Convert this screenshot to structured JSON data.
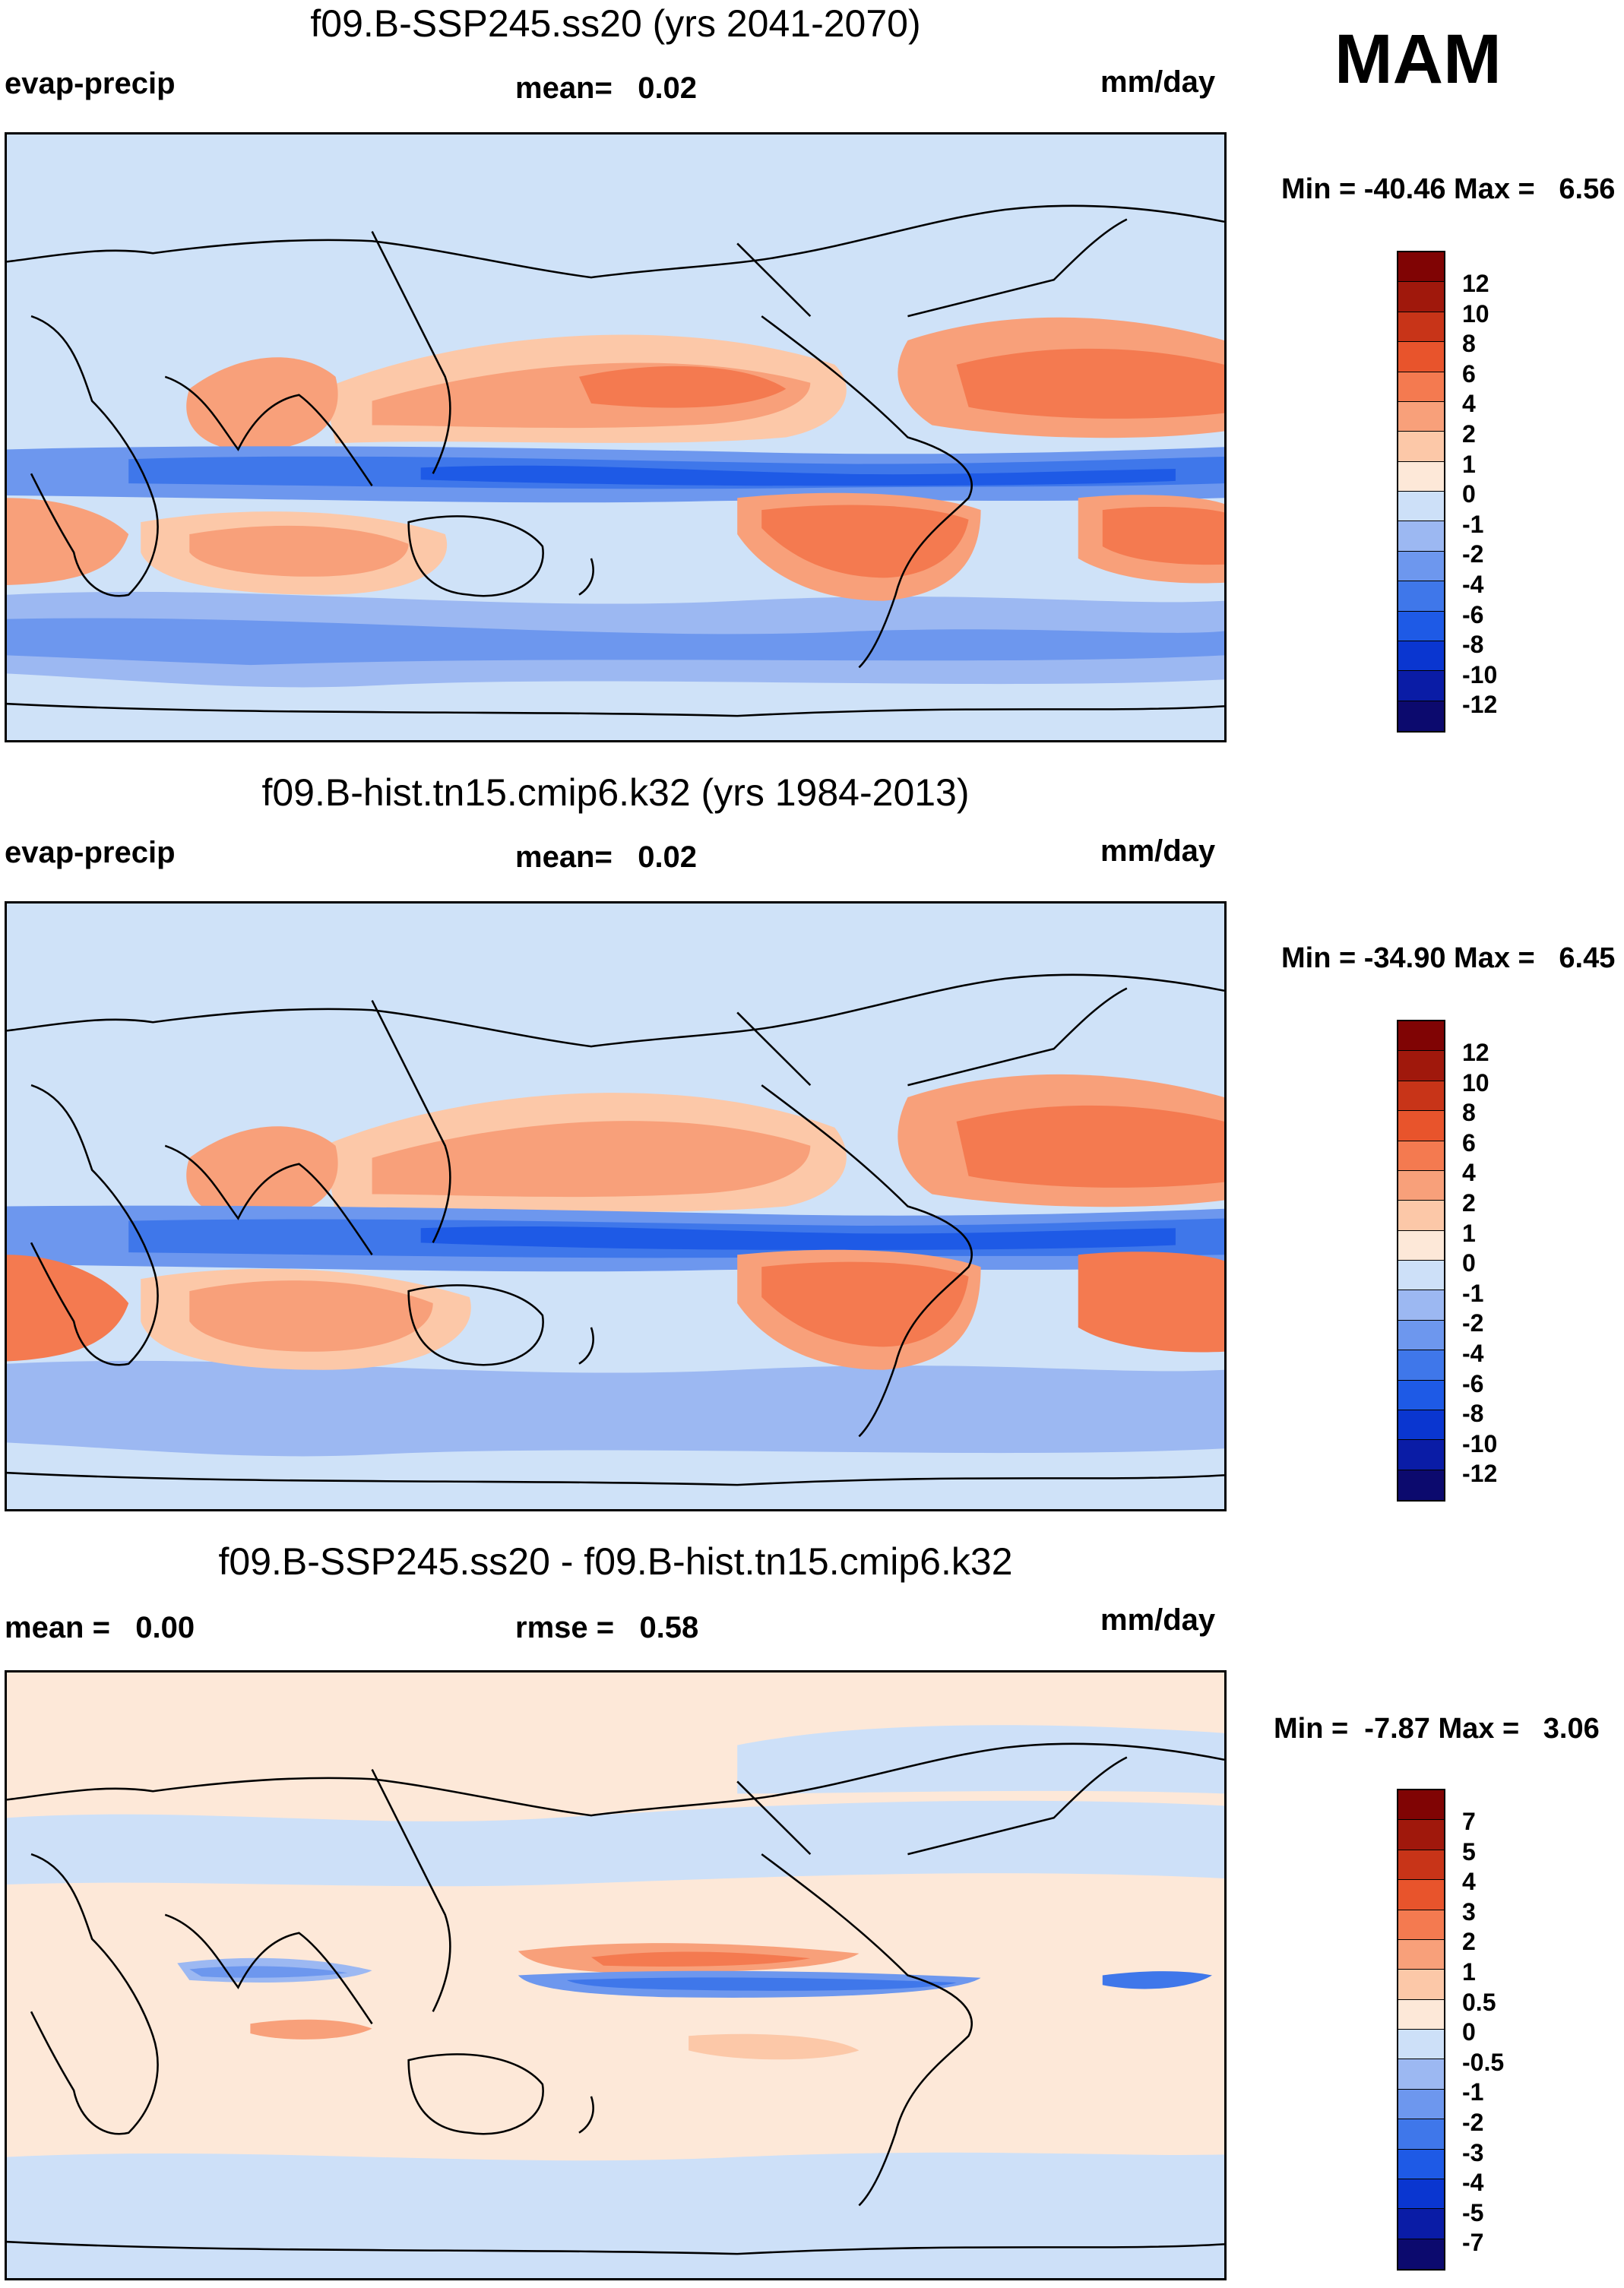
{
  "season": "MAM",
  "colors": {
    "full": [
      "#0c0a6e",
      "#0a1ca6",
      "#0a36d0",
      "#1e5ae6",
      "#3f77ea",
      "#6d97ee",
      "#9cb8f2",
      "#cde0f8",
      "#fde8d8",
      "#fcc8a8",
      "#f8a07a",
      "#f47a50",
      "#e8542c",
      "#c83418",
      "#a0180c",
      "#800404"
    ],
    "diff": [
      "#0c0a6e",
      "#0a1ca6",
      "#0a36d0",
      "#1e5ae6",
      "#3f77ea",
      "#6d97ee",
      "#9cb8f2",
      "#cde0f8",
      "#fde8d8",
      "#fcc8a8",
      "#f8a07a",
      "#f47a50",
      "#e8542c",
      "#c83418",
      "#a0180c",
      "#800404"
    ]
  },
  "panels": [
    {
      "title": "f09.B-SSP245.ss20 (yrs 2041-2070)",
      "left_label": "evap-precip",
      "center_label": "mean=   0.02",
      "units": "mm/day",
      "minmax": "Min = -40.46 Max =   6.56",
      "colorbar": [
        "12",
        "10",
        "8",
        "6",
        "4",
        "2",
        "1",
        "0",
        "-1",
        "-2",
        "-4",
        "-6",
        "-8",
        "-10",
        "-12"
      ],
      "palette": "full"
    },
    {
      "title": "f09.B-hist.tn15.cmip6.k32 (yrs 1984-2013)",
      "left_label": "evap-precip",
      "center_label": "mean=   0.02",
      "units": "mm/day",
      "minmax": "Min = -34.90 Max =   6.45",
      "colorbar": [
        "12",
        "10",
        "8",
        "6",
        "4",
        "2",
        "1",
        "0",
        "-1",
        "-2",
        "-4",
        "-6",
        "-8",
        "-10",
        "-12"
      ],
      "palette": "full"
    },
    {
      "title": "f09.B-SSP245.ss20 - f09.B-hist.tn15.cmip6.k32",
      "left_label": "mean =   0.00",
      "center_label": "rmse =   0.58",
      "units": "mm/day",
      "minmax": "Min =  -7.87 Max =   3.06",
      "colorbar": [
        "7",
        "5",
        "4",
        "3",
        "2",
        "1",
        "0.5",
        "0",
        "-0.5",
        "-1",
        "-2",
        "-3",
        "-4",
        "-5",
        "-7"
      ],
      "palette": "diff"
    }
  ]
}
